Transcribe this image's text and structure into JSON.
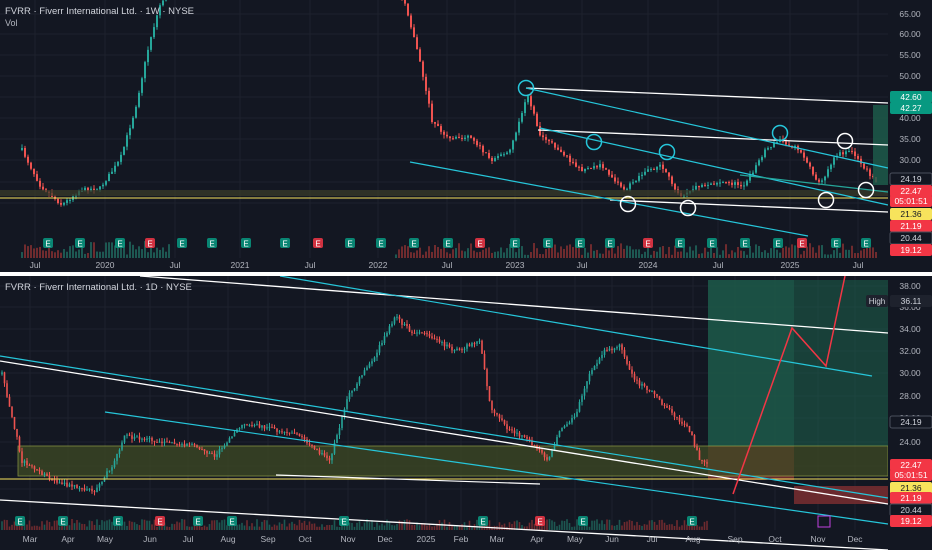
{
  "top": {
    "header": "FVRR · Fiverr International Ltd. · 1W · NYSE",
    "sub": "Vol",
    "price_ticks": [
      "65.00",
      "60.00",
      "55.00",
      "50.00",
      "45.00",
      "40.00",
      "35.00",
      "30.00",
      "25.00",
      "20.00"
    ],
    "time_labels": [
      "Jul",
      "2020",
      "Jul",
      "2021",
      "Jul",
      "2022",
      "Jul",
      "2023",
      "Jul",
      "2024",
      "Jul",
      "2025",
      "Jul"
    ],
    "badges": [
      {
        "text": "42.60",
        "bg": "#089981",
        "fg": "#ffffff"
      },
      {
        "text": "42.27",
        "bg": "#089981",
        "fg": "#ffffff"
      },
      {
        "text": "24.19",
        "bg": "#131722",
        "fg": "#d1d4dc"
      },
      {
        "text": "22.47",
        "bg": "#f23645",
        "fg": "#ffffff"
      },
      {
        "text": "05:01:51",
        "bg": "#f23645",
        "fg": "#ffffff"
      },
      {
        "text": "21.36",
        "bg": "#f7e35c",
        "fg": "#131722"
      },
      {
        "text": "21.19",
        "bg": "#f23645",
        "fg": "#ffffff"
      },
      {
        "text": "20.44",
        "bg": "#131722",
        "fg": "#d1d4dc"
      },
      {
        "text": "19.12",
        "bg": "#f23645",
        "fg": "#ffffff"
      }
    ],
    "earnings_marker": "E"
  },
  "bottom": {
    "header": "FVRR · Fiverr International Ltd. · 1D · NYSE",
    "price_ticks": [
      "38.00",
      "36.00",
      "34.00",
      "32.00",
      "30.00",
      "28.00",
      "26.00",
      "24.00",
      "22.00",
      "20.00"
    ],
    "time_labels": [
      "Mar",
      "Apr",
      "May",
      "Jun",
      "Jul",
      "Aug",
      "Sep",
      "Oct",
      "Nov",
      "Dec",
      "2025",
      "Feb",
      "Mar",
      "Apr",
      "May",
      "Jun",
      "Jul",
      "Aug",
      "Sep",
      "Oct",
      "Nov",
      "Dec"
    ],
    "high_label": "High",
    "high_value": "36.11",
    "badges": [
      {
        "text": "24.19",
        "bg": "#131722",
        "fg": "#d1d4dc"
      },
      {
        "text": "22.47",
        "bg": "#f23645",
        "fg": "#ffffff"
      },
      {
        "text": "05:01:51",
        "bg": "#f23645",
        "fg": "#ffffff"
      },
      {
        "text": "21.36",
        "bg": "#f7e35c",
        "fg": "#131722"
      },
      {
        "text": "21.19",
        "bg": "#f23645",
        "fg": "#ffffff"
      },
      {
        "text": "20.44",
        "bg": "#131722",
        "fg": "#d1d4dc"
      },
      {
        "text": "19.12",
        "bg": "#f23645",
        "fg": "#ffffff"
      }
    ],
    "earnings_marker": "E"
  },
  "colors": {
    "up": "#26a69a",
    "down": "#ef5350",
    "channel": "#26c6da",
    "level": "#f7e35c",
    "line": "#ffffff",
    "bg": "#131722"
  }
}
